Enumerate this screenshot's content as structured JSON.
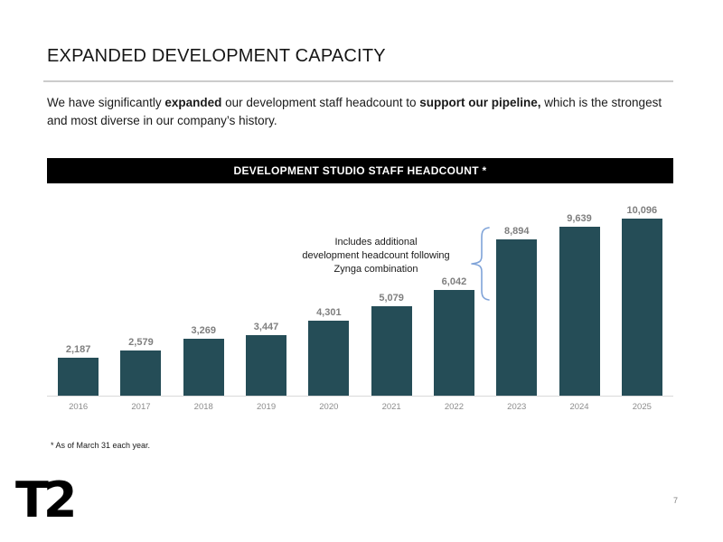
{
  "header": {
    "title": "EXPANDED DEVELOPMENT CAPACITY"
  },
  "intro": {
    "seg1": "We have significantly ",
    "seg2": "expanded",
    "seg3": " our development staff headcount to ",
    "seg4": "support our pipeline,",
    "seg5": " which is the strongest and most diverse in our company’s history."
  },
  "chart_data": {
    "type": "bar",
    "title": "DEVELOPMENT STUDIO STAFF HEADCOUNT *",
    "categories": [
      "2016",
      "2017",
      "2018",
      "2019",
      "2020",
      "2021",
      "2022",
      "2023",
      "2024",
      "2025"
    ],
    "values": [
      2187,
      2579,
      3269,
      3447,
      4301,
      5079,
      6042,
      8894,
      9639,
      10096
    ],
    "value_labels": [
      "2,187",
      "2,579",
      "3,269",
      "3,447",
      "4,301",
      "5,079",
      "6,042",
      "8,894",
      "9,639",
      "10,096"
    ],
    "xlabel": "",
    "ylabel": "",
    "ylim": [
      0,
      10096
    ],
    "grid": false,
    "legend": false,
    "bar_color": "#254D57",
    "value_label_color": "#7f7f7f",
    "axis_label_color": "#8c8c8c",
    "annotation_lines": [
      "Includes additional",
      "development headcount following",
      "Zynga combination"
    ],
    "annotation_target": "2023",
    "annotation_brace_color": "#7FA3D8"
  },
  "footnote": {
    "text": "* As of March 31 each year."
  },
  "footer": {
    "logo_text": "T2",
    "page_number": "7"
  }
}
